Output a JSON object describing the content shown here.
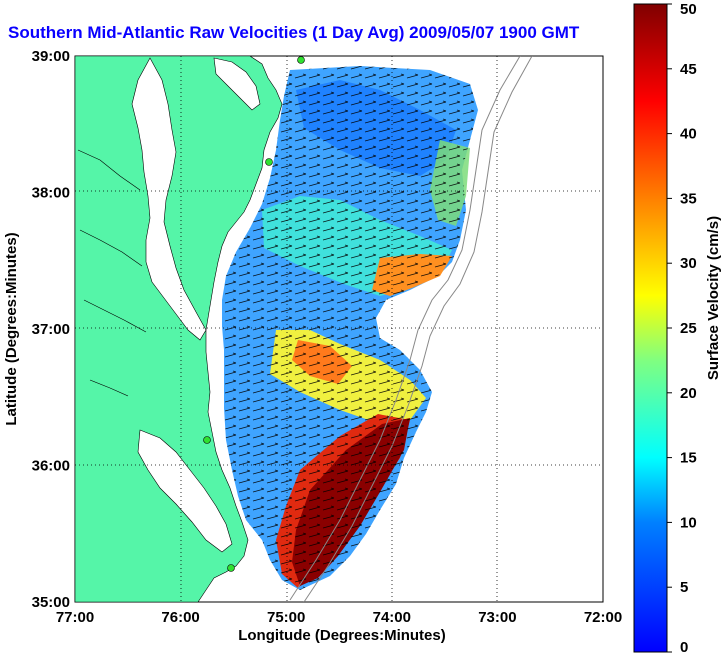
{
  "title": "Southern Mid-Atlantic Raw Velocities (1 Day Avg) 2009/05/07 1900 GMT",
  "map": {
    "xlabel": "Longitude (Degrees:Minutes)",
    "ylabel": "Latitude (Degrees:Minutes)",
    "lon_ticks": [
      "77:00",
      "76:00",
      "75:00",
      "74:00",
      "73:00",
      "72:00"
    ],
    "lat_ticks": [
      "35:00",
      "36:00",
      "37:00",
      "38:00",
      "39:00"
    ],
    "lon_range": [
      -77,
      -72
    ],
    "lat_range": [
      35,
      39
    ],
    "land_color": "#55f5a8",
    "grid": "dotted"
  },
  "colorbar": {
    "label": "Surface Velocity (cm/s)",
    "ticks": [
      "0",
      "5",
      "10",
      "15",
      "20",
      "25",
      "30",
      "35",
      "40",
      "45",
      "50"
    ],
    "range": [
      0,
      50
    ],
    "colormap": "jet"
  },
  "stations": [
    "station-1",
    "station-2",
    "station-3",
    "station-4"
  ]
}
